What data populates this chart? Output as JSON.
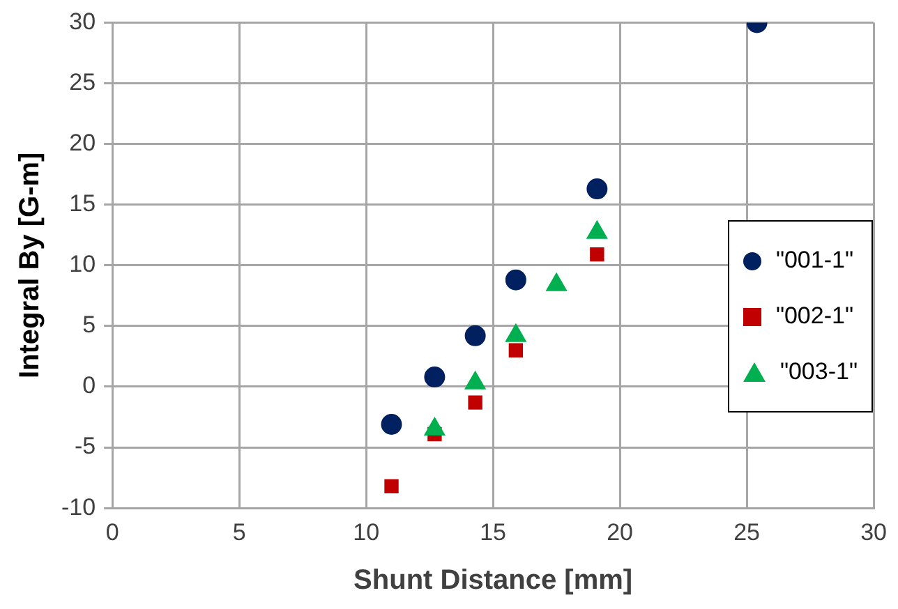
{
  "chart_data": {
    "type": "scatter",
    "xlabel": "Shunt Distance [mm]",
    "ylabel": "Integral By [G-m]",
    "xlim": [
      0,
      30
    ],
    "xticks": [
      0,
      5,
      10,
      15,
      20,
      25,
      30
    ],
    "ylim": [
      -10,
      30
    ],
    "yticks": [
      -10,
      -5,
      0,
      5,
      10,
      15,
      20,
      25,
      30
    ],
    "grid": true,
    "legend": "right",
    "series": [
      {
        "name": "\"001-1\"",
        "color": "#002060",
        "marker": "circle",
        "x": [
          11.0,
          12.7,
          14.3,
          15.9,
          19.1,
          25.4
        ],
        "values": [
          -3.1,
          0.8,
          4.2,
          8.8,
          16.3,
          30
        ]
      },
      {
        "name": "\"002-1\"",
        "color": "#c00000",
        "marker": "square",
        "x": [
          11.0,
          12.7,
          14.3,
          15.9,
          19.1
        ],
        "values": [
          -8.2,
          -3.9,
          -1.3,
          3.0,
          10.9
        ]
      },
      {
        "name": "\"003-1\"",
        "color": "#00b050",
        "marker": "triangle",
        "x": [
          12.7,
          14.3,
          15.9,
          17.5,
          19.1
        ],
        "values": [
          -3.5,
          0.3,
          4.2,
          8.4,
          12.7
        ]
      }
    ]
  }
}
